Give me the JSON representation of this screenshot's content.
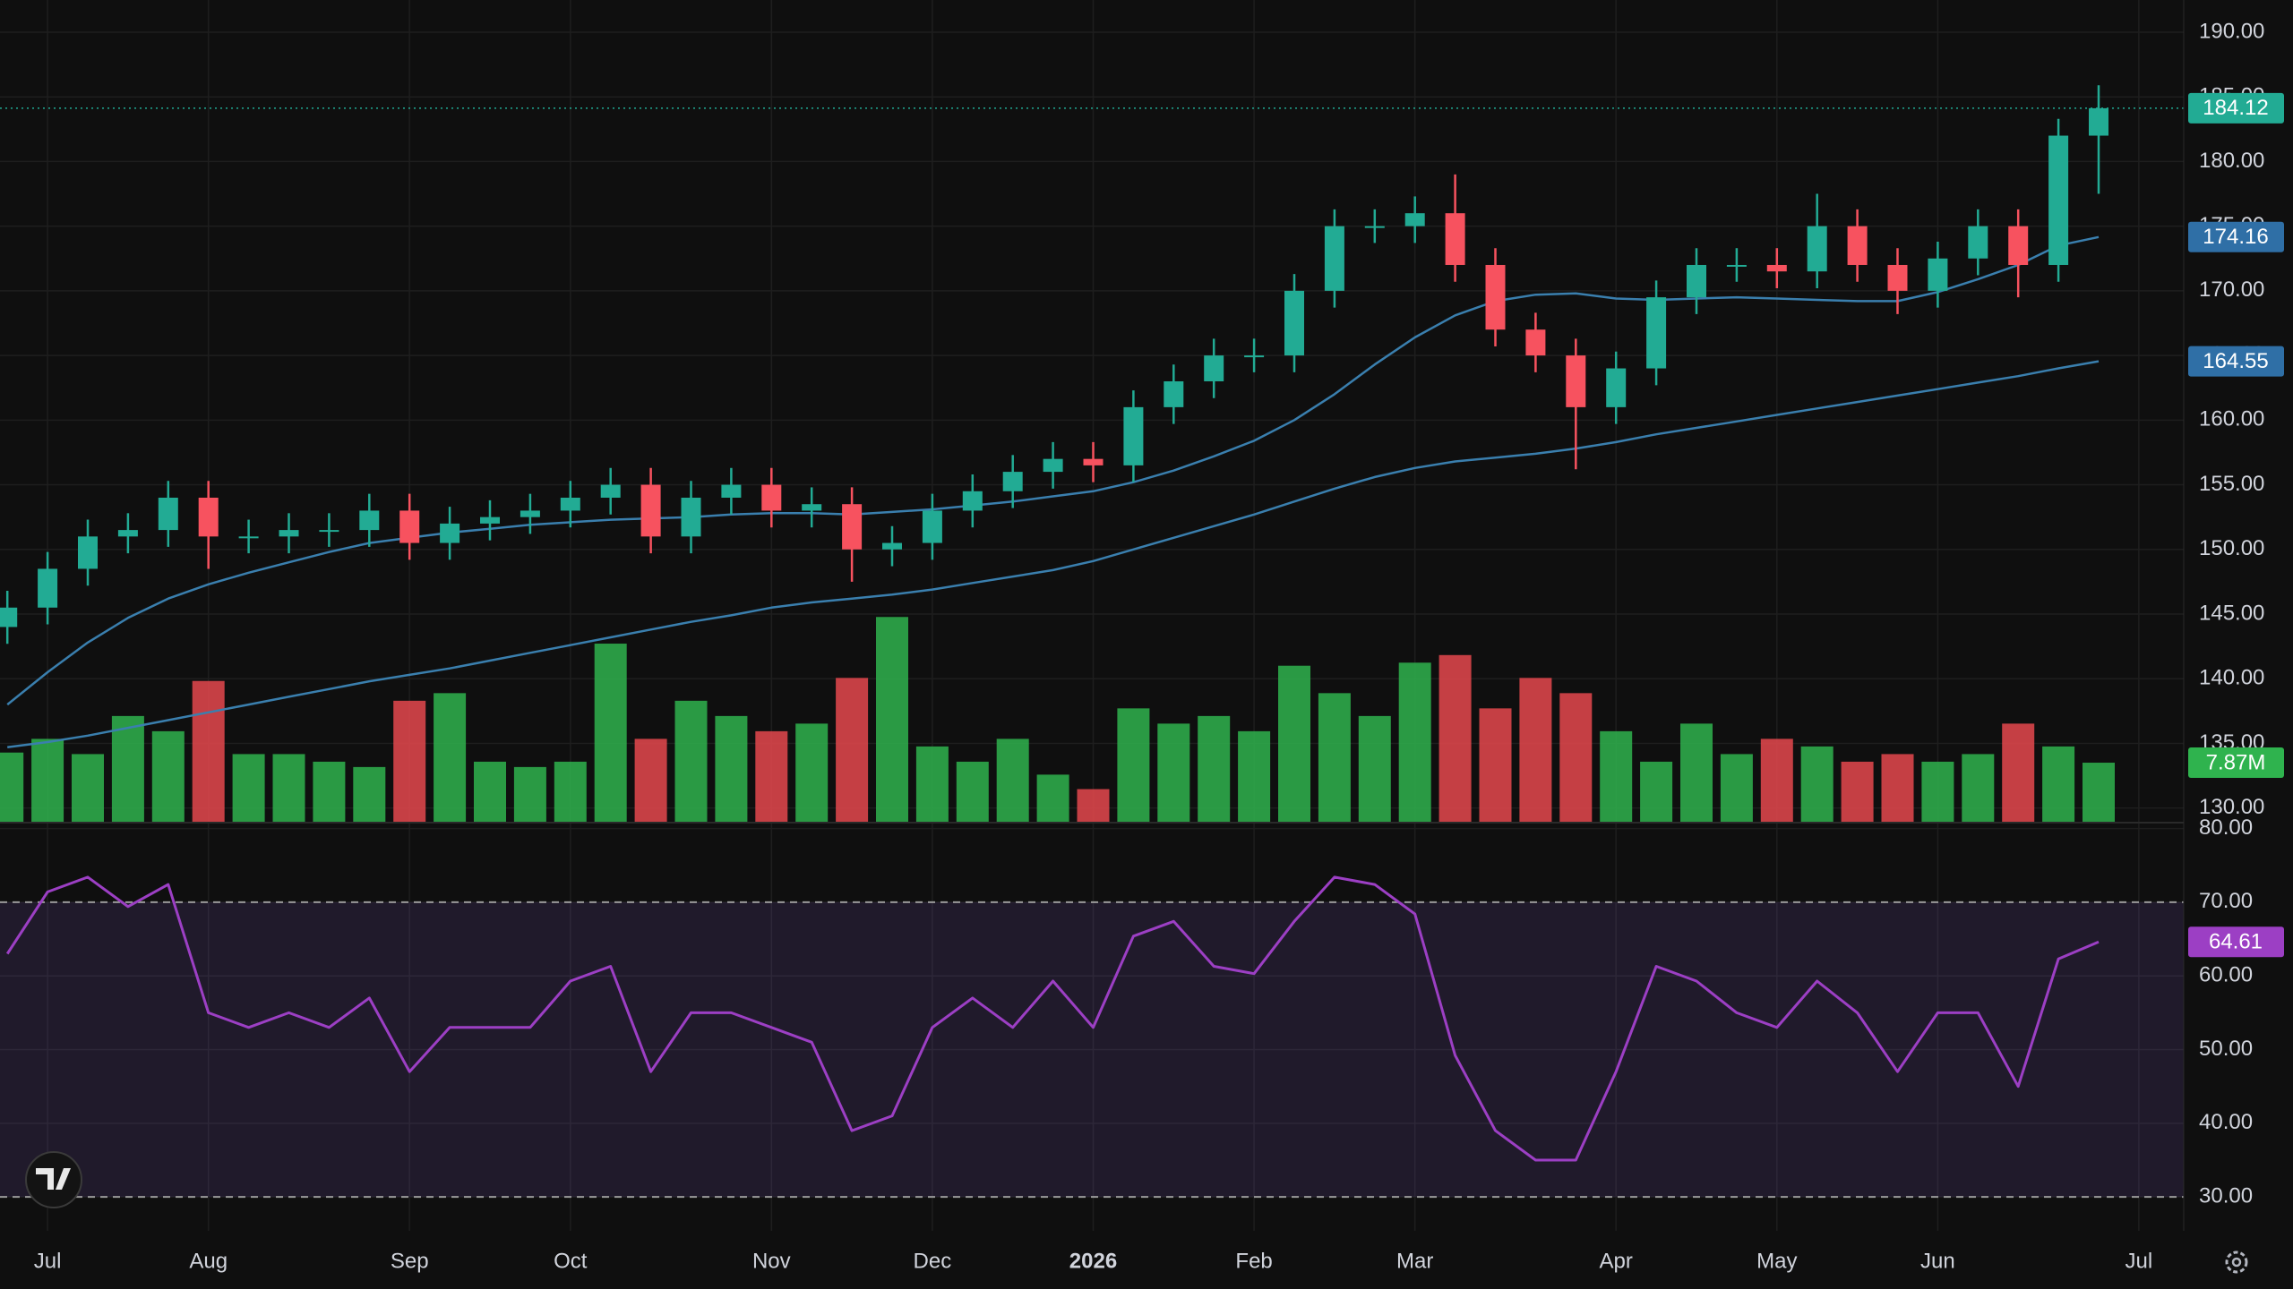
{
  "chart_data": {
    "type": "candlestick",
    "categories": [
      null,
      "Jul",
      null,
      null,
      null,
      "Aug",
      null,
      null,
      null,
      null,
      "Sep",
      null,
      null,
      null,
      "Oct",
      null,
      null,
      null,
      null,
      "Nov",
      null,
      null,
      null,
      "Dec",
      null,
      null,
      null,
      "2026",
      null,
      null,
      null,
      "Feb",
      null,
      null,
      null,
      "Mar",
      null,
      null,
      null,
      null,
      "Apr",
      null,
      null,
      null,
      "May",
      null,
      null,
      null,
      "Jun",
      null,
      null,
      null,
      null,
      "Jul"
    ],
    "open": [
      144.0,
      145.5,
      148.5,
      151,
      151.5,
      154,
      151,
      151,
      151.5,
      151.5,
      153,
      150.5,
      152,
      152.5,
      153,
      154,
      155,
      151,
      154,
      155,
      153,
      153.5,
      150,
      150.5,
      153,
      154.5,
      156,
      157,
      156.5,
      161,
      163,
      165,
      165,
      170,
      175,
      175,
      176,
      172,
      167,
      165,
      161,
      164,
      169.5,
      172,
      172,
      171.5,
      175,
      172,
      170,
      172.5,
      175,
      172,
      182,
      null
    ],
    "high": [
      146.8,
      149.8,
      152.3,
      152.8,
      155.3,
      155.3,
      152.3,
      152.8,
      152.8,
      154.3,
      154.3,
      153.3,
      153.8,
      154.3,
      155.3,
      156.3,
      156.3,
      155.3,
      156.3,
      156.3,
      154.8,
      154.8,
      151.8,
      154.3,
      155.8,
      157.3,
      158.3,
      158.3,
      162.3,
      164.3,
      166.3,
      166.3,
      171.3,
      176.3,
      176.3,
      177.3,
      179,
      173.3,
      168.3,
      166.3,
      165.3,
      170.8,
      173.3,
      173.3,
      173.3,
      177.5,
      176.3,
      173.3,
      173.8,
      176.3,
      176.3,
      183.3,
      185.9,
      null
    ],
    "low": [
      142.7,
      144.2,
      147.2,
      149.7,
      150.2,
      148.5,
      149.7,
      149.7,
      150.2,
      150.2,
      149.2,
      149.2,
      150.7,
      151.2,
      151.7,
      152.7,
      149.7,
      149.7,
      152.7,
      151.7,
      151.7,
      147.5,
      148.7,
      149.2,
      151.7,
      153.2,
      154.7,
      155.2,
      155.2,
      159.7,
      161.7,
      163.7,
      163.7,
      168.7,
      173.7,
      173.7,
      170.7,
      165.7,
      163.7,
      156.2,
      159.7,
      162.7,
      168.2,
      170.7,
      170.2,
      170.2,
      170.7,
      168.2,
      168.7,
      171.2,
      169.5,
      170.7,
      177.5,
      null
    ],
    "close": [
      145.5,
      148.5,
      151,
      151.5,
      154,
      151,
      151,
      151.5,
      151.5,
      153,
      150.5,
      152,
      152.5,
      153,
      154,
      155,
      151,
      154,
      155,
      153,
      153.5,
      150,
      150.5,
      153,
      154.5,
      156,
      157,
      156.5,
      161,
      163,
      165,
      165,
      170,
      175,
      175,
      176,
      172,
      167,
      165,
      161,
      164,
      169.5,
      172,
      172,
      171.5,
      175,
      172,
      170,
      172.5,
      175,
      172,
      182,
      184.12,
      null
    ],
    "up_color": "#22ab94",
    "down_color": "#f7525f",
    "ylim": [
      128.87,
      192.49
    ],
    "yticks": [
      {
        "value": 130,
        "label": "130.00"
      },
      {
        "value": 135,
        "label": "135.00"
      },
      {
        "value": 140,
        "label": "140.00"
      },
      {
        "value": 145,
        "label": "145.00"
      },
      {
        "value": 150,
        "label": "150.00"
      },
      {
        "value": 155,
        "label": "155.00"
      },
      {
        "value": 160,
        "label": "160.00"
      },
      {
        "value": 165,
        "label": "165.00"
      },
      {
        "value": 170,
        "label": "170.00"
      },
      {
        "value": 175,
        "label": "175.00"
      },
      {
        "value": 180,
        "label": "180.00"
      },
      {
        "value": 185,
        "label": "185.00"
      },
      {
        "value": 190,
        "label": "190.00"
      }
    ],
    "grid": true,
    "last_price_line": true,
    "moving_averages": [
      {
        "color": "#3a7fae",
        "label_color": "#2f6fa6",
        "values": [
          138,
          140.5,
          142.8,
          144.7,
          146.2,
          147.3,
          148.2,
          149,
          149.8,
          150.5,
          150.9,
          151.3,
          151.6,
          151.9,
          152.1,
          152.3,
          152.4,
          152.5,
          152.7,
          152.8,
          152.8,
          152.7,
          152.9,
          153.1,
          153.4,
          153.7,
          154.1,
          154.5,
          155.2,
          156.1,
          157.2,
          158.4,
          160.0,
          162.0,
          164.3,
          166.4,
          168.1,
          169.2,
          169.7,
          169.8,
          169.4,
          169.3,
          169.4,
          169.5,
          169.4,
          169.3,
          169.2,
          169.2,
          169.9,
          170.9,
          172,
          173.5,
          174.16,
          null
        ]
      },
      {
        "color": "#3a7fae",
        "label_color": "#2f6fa6",
        "values": [
          134.7,
          135.1,
          135.6,
          136.2,
          136.8,
          137.4,
          138.0,
          138.6,
          139.2,
          139.8,
          140.3,
          140.8,
          141.4,
          142.0,
          142.6,
          143.2,
          143.8,
          144.4,
          144.9,
          145.5,
          145.9,
          146.2,
          146.5,
          146.9,
          147.4,
          147.9,
          148.4,
          149.1,
          150.0,
          150.9,
          151.8,
          152.7,
          153.7,
          154.7,
          155.6,
          156.3,
          156.8,
          157.1,
          157.4,
          157.8,
          158.3,
          158.9,
          159.4,
          159.9,
          160.4,
          160.9,
          161.4,
          161.9,
          162.4,
          162.9,
          163.4,
          164.0,
          164.55,
          null
        ]
      }
    ],
    "volume": {
      "values": [
        9.2,
        11,
        9,
        14,
        12,
        18.6,
        9,
        9,
        8,
        7.3,
        16,
        17,
        8,
        7.3,
        8,
        23.5,
        11,
        16,
        14,
        12,
        13,
        19,
        27,
        10,
        8,
        11,
        6.3,
        4.4,
        15,
        13,
        14,
        12,
        20.6,
        17,
        14,
        21,
        22,
        15,
        19,
        17,
        12,
        8,
        13,
        9,
        11,
        10,
        8,
        9,
        8,
        9,
        13,
        10,
        7.87,
        null
      ],
      "last_value_label": "7.87M",
      "up_color": "#2fb34e",
      "down_color": "#e5484d",
      "ylim": [
        0,
        108
      ]
    },
    "rsi": {
      "values": [
        63,
        71.4,
        73.4,
        69.4,
        72.4,
        55,
        53,
        55,
        53,
        57,
        47,
        53,
        53,
        53,
        59.3,
        61.3,
        47,
        55,
        55,
        53,
        51,
        39,
        41,
        53,
        57,
        53,
        59.3,
        53,
        65.4,
        67.4,
        61.3,
        60.3,
        67.4,
        73.4,
        72.4,
        68.4,
        49.2,
        39,
        35,
        35,
        47,
        61.3,
        59.3,
        55,
        53,
        59.3,
        55,
        47,
        55,
        55,
        45,
        62.3,
        64.61,
        null
      ],
      "color": "#9c3fc4",
      "ylim": [
        25.4,
        80.8
      ],
      "yticks": [
        {
          "value": 30,
          "label": "30.00"
        },
        {
          "value": 40,
          "label": "40.00"
        },
        {
          "value": 50,
          "label": "50.00"
        },
        {
          "value": 60,
          "label": "60.00"
        },
        {
          "value": 70,
          "label": "70.00"
        },
        {
          "value": 80,
          "label": "80.00"
        }
      ],
      "bands": [
        30,
        70
      ]
    }
  }
}
